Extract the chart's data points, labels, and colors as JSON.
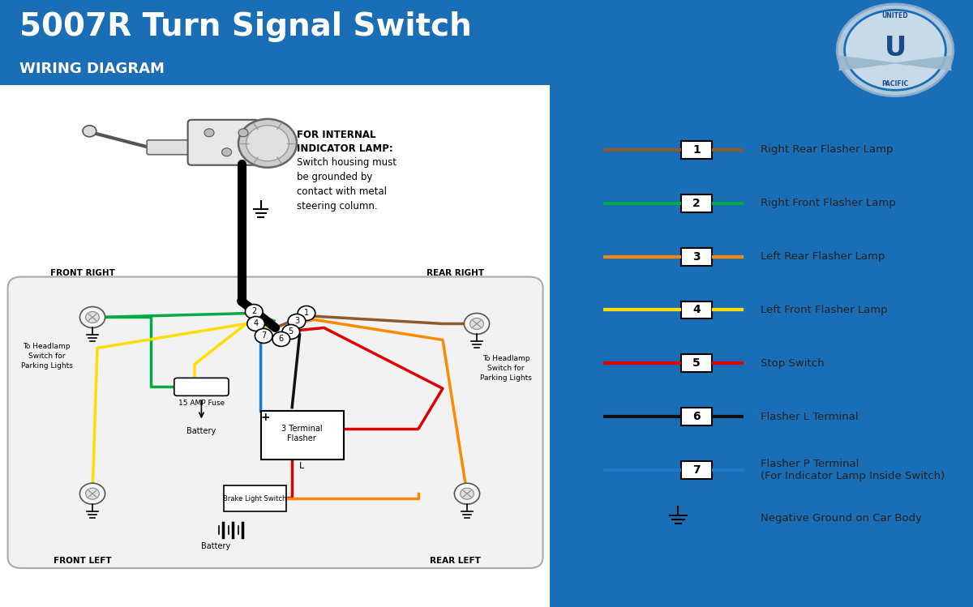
{
  "title_main": "5007R Turn Signal Switch",
  "title_sub": "WIRING DIAGRAM",
  "header_bg_color": "#1a6eb5",
  "diagram_bg_color": "#ffffff",
  "legend_bg_color": "#e4e4e4",
  "legend_items": [
    {
      "number": "1",
      "color": "#8B5A2B",
      "label": "Right Rear Flasher Lamp"
    },
    {
      "number": "2",
      "color": "#00aa44",
      "label": "Right Front Flasher Lamp"
    },
    {
      "number": "3",
      "color": "#ff8800",
      "label": "Left Rear Flasher Lamp"
    },
    {
      "number": "4",
      "color": "#ffdd00",
      "label": "Left Front Flasher Lamp"
    },
    {
      "number": "5",
      "color": "#dd0000",
      "label": "Stop Switch"
    },
    {
      "number": "6",
      "color": "#111111",
      "label": "Flasher L Terminal"
    },
    {
      "number": "7",
      "color": "#1a7acc",
      "label": "Flasher P Terminal\n(For Indicator Lamp Inside Switch)"
    }
  ],
  "ground_label": "Negative Ground on Car Body",
  "corner_labels": [
    "FRONT RIGHT",
    "REAR RIGHT",
    "FRONT LEFT",
    "REAR LEFT"
  ]
}
